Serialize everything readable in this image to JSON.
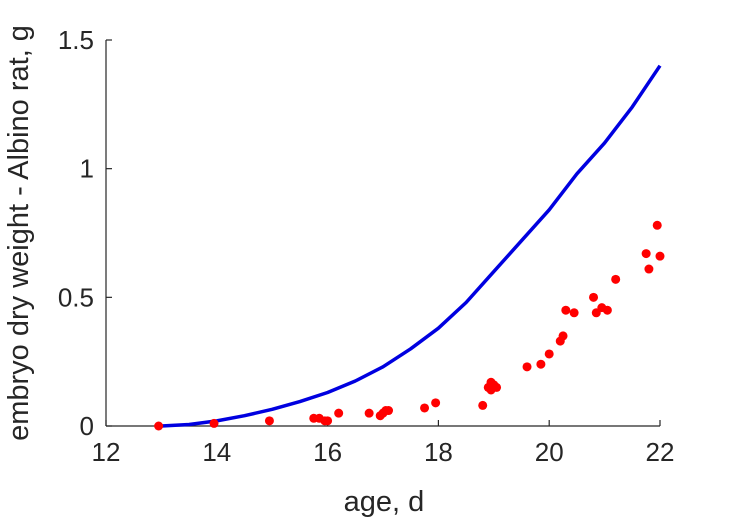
{
  "chart_data": {
    "type": "scatter",
    "xlabel": "age, d",
    "ylabel": "embryo dry weight - Albino rat, g",
    "xlim": [
      12,
      22
    ],
    "ylim": [
      0,
      1.5
    ],
    "xticks": [
      12,
      14,
      16,
      18,
      20,
      22
    ],
    "yticks": [
      0,
      0.5,
      1,
      1.5
    ],
    "xtick_labels": [
      "12",
      "14",
      "16",
      "18",
      "20",
      "22"
    ],
    "ytick_labels": [
      "0",
      "0.5",
      "1",
      "1.5"
    ],
    "grid": false,
    "series": [
      {
        "kind": "points",
        "color": "#ff0000",
        "x": [
          12.95,
          13.95,
          14.95,
          15.75,
          15.85,
          15.95,
          16.0,
          16.2,
          16.75,
          16.95,
          17.0,
          17.05,
          17.1,
          17.75,
          17.95,
          18.8,
          18.9,
          18.95,
          18.95,
          19.0,
          19.05,
          19.6,
          19.85,
          20.0,
          20.2,
          20.25,
          20.3,
          20.45,
          20.8,
          20.85,
          20.95,
          21.05,
          21.2,
          21.75,
          21.8,
          21.95,
          22.0
        ],
        "y": [
          0.0,
          0.01,
          0.02,
          0.03,
          0.03,
          0.02,
          0.02,
          0.05,
          0.05,
          0.04,
          0.05,
          0.06,
          0.06,
          0.07,
          0.09,
          0.08,
          0.15,
          0.17,
          0.14,
          0.16,
          0.15,
          0.23,
          0.24,
          0.28,
          0.33,
          0.35,
          0.45,
          0.44,
          0.5,
          0.44,
          0.46,
          0.45,
          0.57,
          0.67,
          0.61,
          0.78,
          0.66
        ]
      },
      {
        "kind": "line",
        "color": "#0000e0",
        "x": [
          13.0,
          13.5,
          14.0,
          14.5,
          15.0,
          15.5,
          16.0,
          16.5,
          17.0,
          17.5,
          18.0,
          18.5,
          19.0,
          19.5,
          20.0,
          20.5,
          21.0,
          21.5,
          22.0
        ],
        "y": [
          0.0,
          0.006,
          0.02,
          0.04,
          0.065,
          0.095,
          0.13,
          0.175,
          0.23,
          0.3,
          0.38,
          0.48,
          0.6,
          0.72,
          0.84,
          0.98,
          1.1,
          1.24,
          1.4
        ]
      }
    ]
  }
}
